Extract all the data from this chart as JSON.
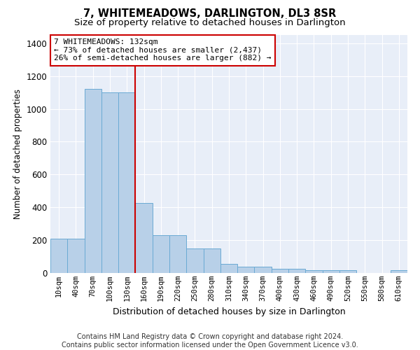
{
  "title": "7, WHITEMEADOWS, DARLINGTON, DL3 8SR",
  "subtitle": "Size of property relative to detached houses in Darlington",
  "xlabel": "Distribution of detached houses by size in Darlington",
  "ylabel": "Number of detached properties",
  "bar_color": "#b8d0e8",
  "bar_edge_color": "#6aaad4",
  "background_color": "#e8eef8",
  "grid_color": "#ffffff",
  "vline_color": "#cc0000",
  "annotation_text": "7 WHITEMEADOWS: 132sqm\n← 73% of detached houses are smaller (2,437)\n26% of semi-detached houses are larger (882) →",
  "annotation_box_color": "#ffffff",
  "annotation_box_edge": "#cc0000",
  "categories": [
    "10sqm",
    "40sqm",
    "70sqm",
    "100sqm",
    "130sqm",
    "160sqm",
    "190sqm",
    "220sqm",
    "250sqm",
    "280sqm",
    "310sqm",
    "340sqm",
    "370sqm",
    "400sqm",
    "430sqm",
    "460sqm",
    "490sqm",
    "520sqm",
    "550sqm",
    "580sqm",
    "610sqm"
  ],
  "bar_values": [
    207,
    210,
    1120,
    1100,
    1100,
    427,
    232,
    232,
    148,
    148,
    57,
    40,
    37,
    25,
    25,
    15,
    15,
    15,
    0,
    0,
    18
  ],
  "vline_pos": 4.5,
  "ylim": [
    0,
    1450
  ],
  "yticks": [
    0,
    200,
    400,
    600,
    800,
    1000,
    1200,
    1400
  ],
  "footer": "Contains HM Land Registry data © Crown copyright and database right 2024.\nContains public sector information licensed under the Open Government Licence v3.0.",
  "footer_fontsize": 7,
  "title_fontsize": 10.5,
  "subtitle_fontsize": 9.5,
  "ylabel_fontsize": 8.5,
  "xlabel_fontsize": 9
}
